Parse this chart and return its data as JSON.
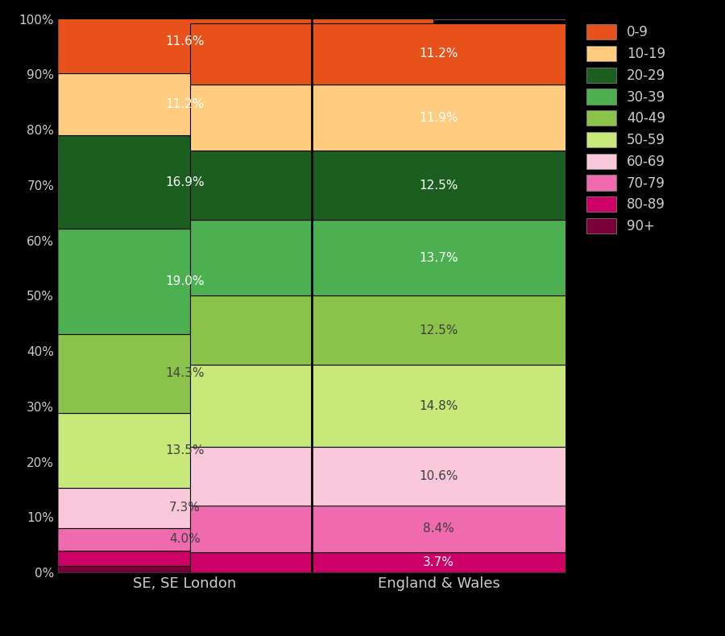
{
  "categories": [
    "SE, SE London",
    "England & Wales"
  ],
  "age_groups_bottom_top": [
    "90+",
    "80-89",
    "70-79",
    "60-69",
    "50-59",
    "40-49",
    "30-39",
    "20-29",
    "10-19",
    "0-9"
  ],
  "colors_bottom_top": [
    "#7b003a",
    "#d4006a",
    "#f472b6",
    "#f9c8db",
    "#c8e87a",
    "#8bc34a",
    "#4caf50",
    "#1b5e20",
    "#ffcc80",
    "#e8521a"
  ],
  "se_vals": [
    1.2,
    2.8,
    4.0,
    7.3,
    13.5,
    14.3,
    19.0,
    16.9,
    11.2,
    11.6
  ],
  "ew_vals": [
    3.7,
    8.4,
    10.6,
    14.8,
    12.5,
    13.7,
    12.5,
    11.9,
    11.2,
    0.0
  ],
  "ew_vals_9": [
    3.7,
    8.4,
    10.6,
    14.8,
    12.5,
    13.7,
    12.5,
    11.9,
    11.2
  ],
  "se_labels": [
    "",
    "",
    "4.0%",
    "7.3%",
    "13.5%",
    "14.3%",
    "19.0%",
    "16.9%",
    "11.2%",
    "11.6%"
  ],
  "ew_labels": [
    "3.7%",
    "8.4%",
    "10.6%",
    "14.8%",
    "12.5%",
    "13.7%",
    "12.5%",
    "11.9%",
    "11.2%"
  ],
  "background_color": "#000000",
  "text_color_light": "#cccccc",
  "separator_color": "#000000",
  "ytick_labels": [
    "0%",
    "10%",
    "20%",
    "30%",
    "40%",
    "50%",
    "60%",
    "70%",
    "80%",
    "90%",
    "100%"
  ]
}
